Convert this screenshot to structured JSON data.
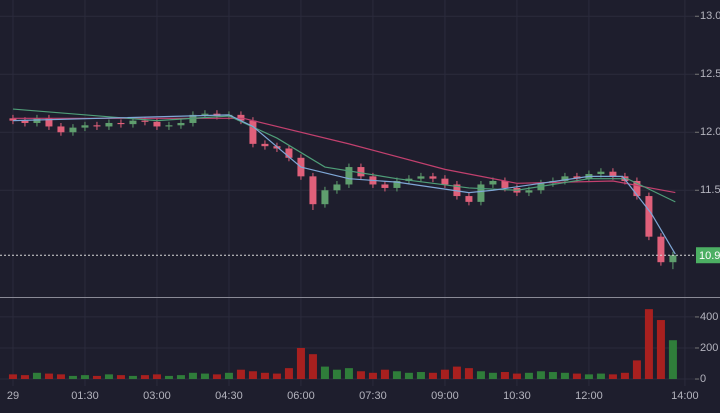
{
  "chart_data": [
    {
      "type": "candlestick",
      "x": [
        0,
        0.25,
        0.5,
        0.75,
        1,
        1.25,
        1.5,
        1.75,
        2,
        2.25,
        2.5,
        2.75,
        3,
        3.25,
        3.5,
        3.75,
        4,
        4.25,
        4.5,
        4.75,
        5,
        5.25,
        5.5,
        5.75,
        6,
        6.25,
        6.5,
        6.75,
        7,
        7.25,
        7.5,
        7.75,
        8,
        8.25,
        8.5,
        8.75,
        9,
        9.25,
        9.5,
        9.75,
        10,
        10.25,
        10.5,
        10.75,
        11,
        11.25,
        11.5,
        11.75,
        12,
        12.25,
        12.5,
        12.75,
        13,
        13.25,
        13.5,
        13.75
      ],
      "open": [
        12.12,
        12.1,
        12.08,
        12.12,
        12.05,
        12.0,
        12.04,
        12.06,
        12.05,
        12.08,
        12.07,
        12.1,
        12.09,
        12.05,
        12.06,
        12.08,
        12.15,
        12.16,
        12.14,
        12.15,
        12.1,
        11.9,
        11.88,
        11.86,
        11.78,
        11.62,
        11.38,
        11.5,
        11.55,
        11.7,
        11.62,
        11.55,
        11.52,
        11.58,
        11.6,
        11.62,
        11.6,
        11.55,
        11.45,
        11.4,
        11.55,
        11.58,
        11.52,
        11.48,
        11.5,
        11.56,
        11.58,
        11.62,
        11.6,
        11.64,
        11.66,
        11.62,
        11.58,
        11.45,
        11.1,
        10.88
      ],
      "high": [
        12.15,
        12.13,
        12.15,
        12.15,
        12.08,
        12.07,
        12.09,
        12.09,
        12.11,
        12.11,
        12.13,
        12.13,
        12.12,
        12.09,
        12.11,
        12.18,
        12.19,
        12.19,
        12.18,
        12.18,
        12.13,
        11.93,
        11.91,
        11.89,
        11.81,
        11.65,
        11.53,
        11.58,
        11.73,
        11.73,
        11.65,
        11.58,
        11.61,
        11.63,
        11.65,
        11.65,
        11.63,
        11.58,
        11.48,
        11.58,
        11.61,
        11.61,
        11.55,
        11.53,
        11.59,
        11.61,
        11.65,
        11.65,
        11.67,
        11.69,
        11.69,
        11.65,
        11.61,
        11.48,
        11.13,
        10.97
      ],
      "low": [
        12.07,
        12.05,
        12.05,
        12.02,
        11.97,
        11.97,
        12.01,
        12.02,
        12.02,
        12.04,
        12.04,
        12.06,
        12.02,
        12.02,
        12.03,
        12.05,
        12.12,
        12.11,
        12.11,
        12.07,
        11.87,
        11.85,
        11.83,
        11.75,
        11.59,
        11.33,
        11.35,
        11.47,
        11.52,
        11.59,
        11.52,
        11.49,
        11.49,
        11.55,
        11.57,
        11.57,
        11.52,
        11.42,
        11.37,
        11.37,
        11.52,
        11.49,
        11.45,
        11.45,
        11.47,
        11.53,
        11.55,
        11.57,
        11.57,
        11.61,
        11.59,
        11.55,
        11.42,
        11.07,
        10.85,
        10.82
      ],
      "close": [
        12.1,
        12.08,
        12.12,
        12.05,
        12.0,
        12.04,
        12.06,
        12.05,
        12.08,
        12.07,
        12.1,
        12.09,
        12.05,
        12.06,
        12.08,
        12.15,
        12.16,
        12.14,
        12.15,
        12.1,
        11.9,
        11.88,
        11.86,
        11.78,
        11.62,
        11.38,
        11.5,
        11.55,
        11.7,
        11.62,
        11.55,
        11.52,
        11.58,
        11.6,
        11.62,
        11.6,
        11.55,
        11.45,
        11.4,
        11.55,
        11.58,
        11.52,
        11.48,
        11.5,
        11.56,
        11.58,
        11.62,
        11.6,
        11.64,
        11.66,
        11.62,
        11.58,
        11.45,
        11.1,
        10.88,
        10.94
      ],
      "up_color": "#5f9e6e",
      "down_color": "#e0607a",
      "series": [
        {
          "color": "#c2406e",
          "x": [
            0,
            4.8,
            7,
            9,
            10.5,
            12.5,
            13.8
          ],
          "values": [
            12.12,
            12.12,
            11.9,
            11.68,
            11.56,
            11.58,
            11.48
          ]
        },
        {
          "color": "#4f9e78",
          "x": [
            0,
            3,
            4.5,
            5.5,
            6.5,
            8,
            9.5,
            10.5,
            12,
            12.8,
            13.8
          ],
          "values": [
            12.2,
            12.1,
            12.14,
            11.95,
            11.7,
            11.6,
            11.52,
            11.5,
            11.6,
            11.6,
            11.4
          ]
        },
        {
          "color": "#7fa7d6",
          "x": [
            0,
            4.5,
            5,
            6,
            7,
            8,
            9.5,
            10,
            12,
            12.7,
            13.3,
            13.8
          ],
          "values": [
            12.1,
            12.15,
            12.05,
            11.7,
            11.6,
            11.57,
            11.48,
            11.5,
            11.62,
            11.62,
            11.3,
            10.95
          ]
        }
      ],
      "last_price": {
        "value": 10.94,
        "label": "10.9",
        "color": "#4caf63"
      },
      "xlim": [
        -0.27,
        14.21
      ],
      "ylim": [
        10.58,
        13.14
      ],
      "yticks": [
        {
          "value": 11.5,
          "label": "11.5"
        },
        {
          "value": 12,
          "label": "12.0"
        },
        {
          "value": 12.5,
          "label": "12.5"
        },
        {
          "value": 13,
          "label": "13.0"
        }
      ],
      "grid": true
    },
    {
      "type": "bar",
      "x": [
        0,
        0.25,
        0.5,
        0.75,
        1,
        1.25,
        1.5,
        1.75,
        2,
        2.25,
        2.5,
        2.75,
        3,
        3.25,
        3.5,
        3.75,
        4,
        4.25,
        4.5,
        4.75,
        5,
        5.25,
        5.5,
        5.75,
        6,
        6.25,
        6.5,
        6.75,
        7,
        7.25,
        7.5,
        7.75,
        8,
        8.25,
        8.5,
        8.75,
        9,
        9.25,
        9.5,
        9.75,
        10,
        10.25,
        10.5,
        10.75,
        11,
        11.25,
        11.5,
        11.75,
        12,
        12.25,
        12.5,
        12.75,
        13,
        13.25,
        13.5,
        13.75
      ],
      "values": [
        30,
        25,
        40,
        35,
        30,
        20,
        25,
        20,
        30,
        25,
        20,
        25,
        30,
        20,
        25,
        40,
        35,
        30,
        40,
        60,
        50,
        40,
        35,
        70,
        200,
        160,
        80,
        60,
        70,
        50,
        40,
        60,
        50,
        40,
        45,
        40,
        60,
        80,
        70,
        50,
        40,
        45,
        35,
        40,
        50,
        45,
        40,
        35,
        30,
        35,
        30,
        40,
        120,
        450,
        380,
        250
      ],
      "up_color": "#2f7d3a",
      "down_color": "#a8201f",
      "xlim": [
        -0.27,
        14.21
      ],
      "ylim": [
        -45,
        522
      ],
      "yticks": [
        0,
        200,
        400
      ],
      "xticks": [
        {
          "value": 0,
          "label": "29"
        },
        {
          "value": 1.5,
          "label": "01:30"
        },
        {
          "value": 3,
          "label": "03:00"
        },
        {
          "value": 4.5,
          "label": "04:30"
        },
        {
          "value": 6,
          "label": "06:00"
        },
        {
          "value": 7.5,
          "label": "07:30"
        },
        {
          "value": 9,
          "label": "09:00"
        },
        {
          "value": 10.5,
          "label": "10:30"
        },
        {
          "value": 12,
          "label": "12:00"
        },
        {
          "value": 14,
          "label": "14:00"
        }
      ],
      "grid": true
    }
  ]
}
